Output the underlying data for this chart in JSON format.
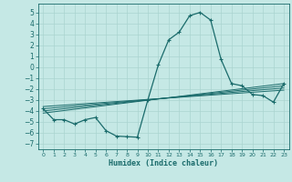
{
  "xlabel": "Humidex (Indice chaleur)",
  "xlim": [
    -0.5,
    23.5
  ],
  "ylim": [
    -7.5,
    5.8
  ],
  "xticks": [
    0,
    1,
    2,
    3,
    4,
    5,
    6,
    7,
    8,
    9,
    10,
    11,
    12,
    13,
    14,
    15,
    16,
    17,
    18,
    19,
    20,
    21,
    22,
    23
  ],
  "yticks": [
    5,
    4,
    3,
    2,
    1,
    0,
    -1,
    -2,
    -3,
    -4,
    -5,
    -6,
    -7
  ],
  "bg_color": "#c5e8e5",
  "line_color": "#1a6b6b",
  "grid_color": "#aad4d0",
  "main_line_x": [
    0,
    1,
    2,
    3,
    4,
    5,
    6,
    7,
    8,
    9,
    10,
    11,
    12,
    13,
    14,
    15,
    16,
    17,
    18,
    19,
    20,
    21,
    22,
    23
  ],
  "main_line_y": [
    -3.8,
    -4.8,
    -4.8,
    -5.2,
    -4.8,
    -4.6,
    -5.8,
    -6.3,
    -6.35,
    -6.4,
    -3.0,
    0.2,
    2.5,
    3.2,
    4.7,
    5.0,
    4.3,
    0.7,
    -1.5,
    -1.7,
    -2.5,
    -2.6,
    -3.2,
    -1.5
  ],
  "trend_lines": [
    {
      "x": [
        0,
        23
      ],
      "y": [
        -4.2,
        -1.5
      ]
    },
    {
      "x": [
        0,
        23
      ],
      "y": [
        -4.0,
        -1.7
      ]
    },
    {
      "x": [
        0,
        23
      ],
      "y": [
        -3.8,
        -1.9
      ]
    },
    {
      "x": [
        0,
        23
      ],
      "y": [
        -3.6,
        -2.1
      ]
    }
  ]
}
